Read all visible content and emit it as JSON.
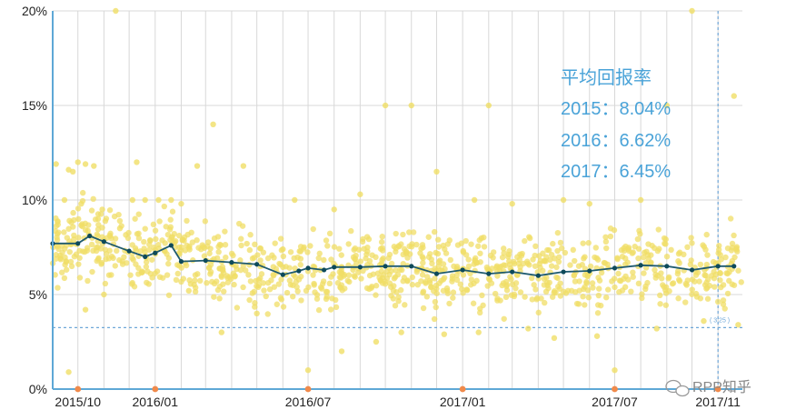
{
  "chart_data": {
    "type": "scatter",
    "title": "",
    "xlabel": "",
    "ylabel": "",
    "x_range": [
      "2015-09-01",
      "2017-11-30"
    ],
    "ylim": [
      0,
      20
    ],
    "y_ticks": [
      {
        "value": 0,
        "label": "0%"
      },
      {
        "value": 5,
        "label": "5%"
      },
      {
        "value": 10,
        "label": "10%"
      },
      {
        "value": 15,
        "label": "15%"
      },
      {
        "value": 20,
        "label": "20%"
      }
    ],
    "x_ticks": [
      {
        "date": "2015-10-01",
        "label": "2015/10"
      },
      {
        "date": "2016-01-01",
        "label": "2016/01"
      },
      {
        "date": "2016-07-01",
        "label": "2016/07"
      },
      {
        "date": "2017-01-01",
        "label": "2017/01"
      },
      {
        "date": "2017-07-01",
        "label": "2017/07"
      },
      {
        "date": "2017-11-01",
        "label": "2017/11"
      }
    ],
    "grid": true,
    "annotation": {
      "title": "平均回报率",
      "lines": [
        "2015：8.04%",
        "2016：6.62%",
        "2017：6.45%"
      ]
    },
    "reference_line": {
      "value": 3.25,
      "label": "3.25"
    },
    "marker_line_date": "2017-11-01",
    "average_series": {
      "x": [
        "2015-09-01",
        "2015-10-01",
        "2015-10-15",
        "2015-11-01",
        "2015-12-01",
        "2015-12-20",
        "2016-01-01",
        "2016-01-20",
        "2016-02-01",
        "2016-03-01",
        "2016-04-01",
        "2016-05-01",
        "2016-06-01",
        "2016-06-20",
        "2016-07-01",
        "2016-07-20",
        "2016-08-01",
        "2016-09-01",
        "2016-10-01",
        "2016-11-01",
        "2016-12-01",
        "2017-01-01",
        "2017-02-01",
        "2017-03-01",
        "2017-04-01",
        "2017-05-01",
        "2017-06-01",
        "2017-07-01",
        "2017-08-01",
        "2017-09-01",
        "2017-10-01",
        "2017-11-01",
        "2017-11-20"
      ],
      "values": [
        7.7,
        7.7,
        8.1,
        7.8,
        7.3,
        7.0,
        7.2,
        7.6,
        6.75,
        6.8,
        6.7,
        6.6,
        6.05,
        6.25,
        6.4,
        6.3,
        6.45,
        6.45,
        6.5,
        6.5,
        6.1,
        6.3,
        6.1,
        6.2,
        6.0,
        6.2,
        6.25,
        6.4,
        6.55,
        6.5,
        6.3,
        6.5,
        6.5
      ]
    },
    "scatter_series": {
      "description_band": "yellow points",
      "points": [
        [
          "2015-09-05",
          11.9
        ],
        [
          "2015-09-15",
          10.0
        ],
        [
          "2015-09-20",
          11.6
        ],
        [
          "2015-10-01",
          12.0
        ],
        [
          "2015-10-10",
          11.9
        ],
        [
          "2015-10-20",
          11.8
        ],
        [
          "2015-10-05",
          9.8
        ],
        [
          "2015-10-25",
          9.0
        ],
        [
          "2015-09-25",
          11.5
        ],
        [
          "2015-10-30",
          9.5
        ],
        [
          "2015-11-15",
          20.0
        ],
        [
          "2015-11-20",
          8.5
        ],
        [
          "2015-12-10",
          12.0
        ],
        [
          "2015-12-05",
          10.0
        ],
        [
          "2015-12-20",
          10.0
        ],
        [
          "2016-01-05",
          10.0
        ],
        [
          "2016-01-20",
          10.0
        ],
        [
          "2016-02-01",
          9.8
        ],
        [
          "2016-02-20",
          11.8
        ],
        [
          "2016-03-10",
          14.0
        ],
        [
          "2016-04-15",
          11.8
        ],
        [
          "2016-06-01",
          7.4
        ],
        [
          "2016-06-15",
          10.0
        ],
        [
          "2016-07-01",
          1.0
        ],
        [
          "2016-08-01",
          9.5
        ],
        [
          "2016-09-01",
          10.3
        ],
        [
          "2016-10-01",
          15.0
        ],
        [
          "2016-11-01",
          15.0
        ],
        [
          "2016-12-01",
          11.5
        ],
        [
          "2017-01-15",
          10.0
        ],
        [
          "2017-02-01",
          15.0
        ],
        [
          "2017-03-01",
          9.8
        ],
        [
          "2017-05-01",
          10.0
        ],
        [
          "2017-06-01",
          9.8
        ],
        [
          "2017-07-01",
          1.0
        ],
        [
          "2017-08-01",
          10.0
        ],
        [
          "2017-09-01",
          15.0
        ],
        [
          "2017-10-01",
          20.0
        ],
        [
          "2017-11-20",
          15.5
        ],
        [
          "2017-11-25",
          3.4
        ],
        [
          "2015-09-20",
          0.9
        ],
        [
          "2015-10-10",
          4.2
        ],
        [
          "2015-11-01",
          5.0
        ],
        [
          "2016-02-10",
          5.2
        ],
        [
          "2016-03-20",
          3.0
        ],
        [
          "2016-05-01",
          4.0
        ],
        [
          "2016-08-10",
          2.0
        ],
        [
          "2016-09-20",
          2.5
        ],
        [
          "2016-10-20",
          3.0
        ],
        [
          "2016-12-10",
          2.9
        ],
        [
          "2017-01-20",
          3.0
        ],
        [
          "2017-03-20",
          3.2
        ],
        [
          "2017-04-20",
          2.7
        ],
        [
          "2017-06-10",
          2.8
        ],
        [
          "2017-08-20",
          3.2
        ],
        [
          "2017-10-15",
          3.6
        ]
      ]
    },
    "colors": {
      "points": "#f0de66",
      "average_line": "#1e5a6e",
      "average_marker": "#0e4a5a",
      "grid": "#d8d8d8",
      "axis": "#5ea8d6",
      "annotation": "#4aa3d8",
      "tick_marker": "#f08a4b",
      "reference": "#6fa7d8"
    }
  },
  "watermark": {
    "text": "RPP知乎",
    "icon": "wechat-icon"
  }
}
